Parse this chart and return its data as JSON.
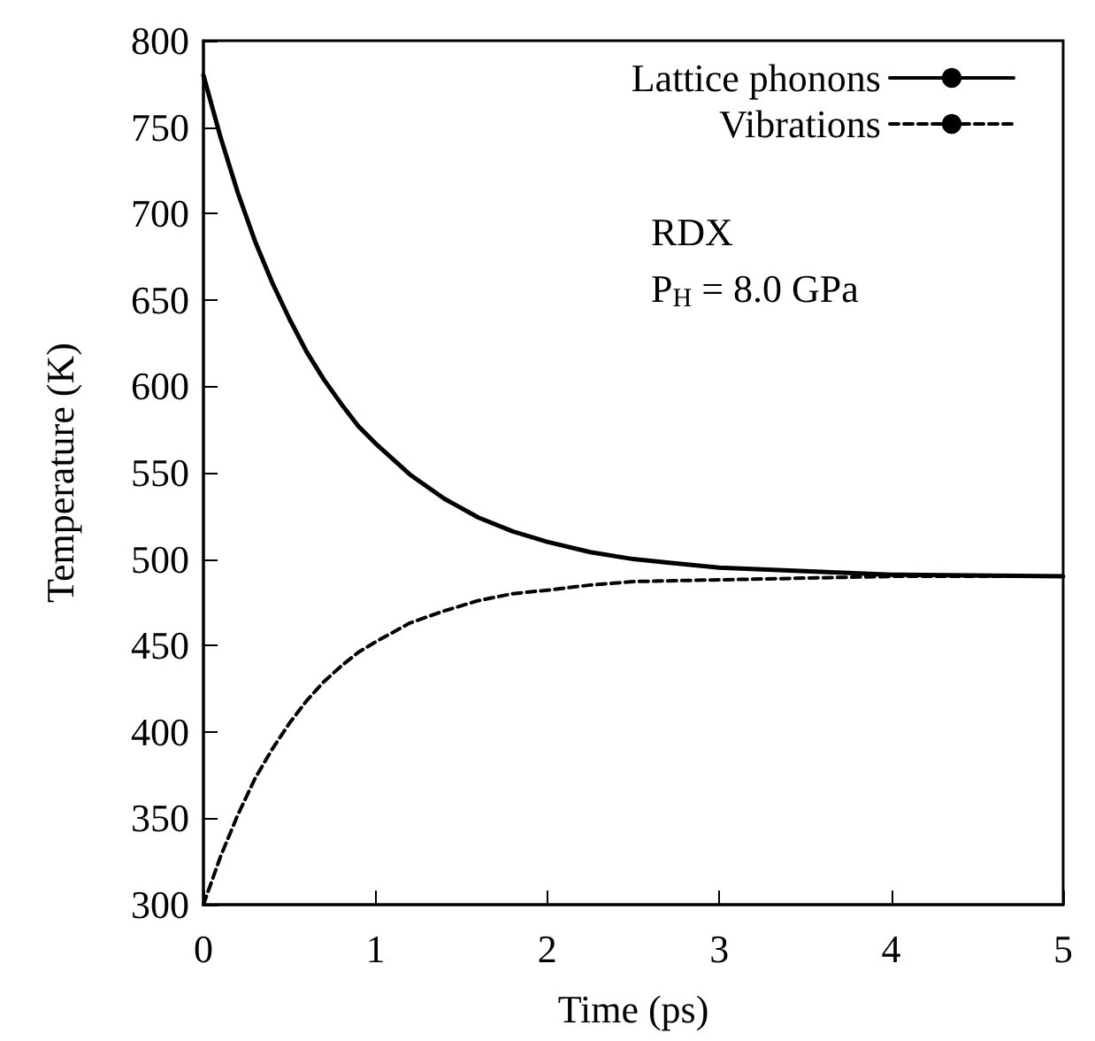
{
  "chart_data": {
    "type": "line",
    "xlabel": "Time (ps)",
    "ylabel": "Temperature (K)",
    "x": [
      0,
      0.1,
      0.2,
      0.3,
      0.4,
      0.5,
      0.6,
      0.7,
      0.8,
      0.9,
      1.0,
      1.2,
      1.4,
      1.6,
      1.8,
      2.0,
      2.25,
      2.5,
      3,
      3.5,
      4,
      5
    ],
    "series": [
      {
        "name": "Lattice phonons",
        "color": "#000000",
        "line_style": "solid",
        "values": [
          780,
          744,
          712,
          684,
          660,
          639,
          620,
          604,
          590,
          577,
          567,
          549,
          535,
          524,
          516,
          510,
          504,
          500,
          495,
          493,
          491,
          490
        ]
      },
      {
        "name": "Vibrations",
        "color": "#000000",
        "line_style": "dashed",
        "values": [
          300,
          328,
          352,
          373,
          390,
          405,
          418,
          429,
          438,
          446,
          452,
          463,
          470,
          476,
          480,
          482,
          485,
          487,
          488,
          489,
          490,
          490
        ]
      }
    ],
    "xlim": [
      0,
      5
    ],
    "xticks": [
      0,
      1,
      2,
      3,
      4,
      5
    ],
    "ylim": [
      300,
      800
    ],
    "yticks": [
      300,
      350,
      400,
      450,
      500,
      550,
      600,
      650,
      700,
      750,
      800
    ],
    "grid": false,
    "legend": "top right",
    "marker": "none",
    "annotations": [
      "RDX",
      "P$_{H}$ = 8.0 GPa"
    ]
  }
}
